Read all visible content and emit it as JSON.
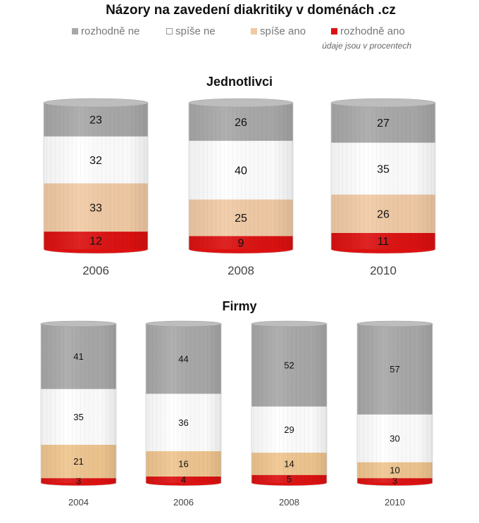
{
  "title": "Názory na zavedení diakritiky v doménách .cz",
  "note": "údaje jsou v procentech",
  "legend": [
    {
      "label": "rozhodně ne",
      "color": "#a8a8a8"
    },
    {
      "label": "spíše ne",
      "color": "#ffffff"
    },
    {
      "label": "spíše ano",
      "color": "#f2c9a0"
    },
    {
      "label": "rozhodně ano",
      "color": "#dd1111"
    }
  ],
  "chart_data": [
    {
      "type": "bar",
      "stacked": true,
      "title": "Jednotlivci",
      "categories": [
        "2006",
        "2008",
        "2010"
      ],
      "series": [
        {
          "name": "rozhodně ano",
          "values": [
            12,
            9,
            11
          ],
          "color": "#dd1111"
        },
        {
          "name": "spíše ano",
          "values": [
            33,
            25,
            26
          ],
          "color": "#f2cba6"
        },
        {
          "name": "spíše ne",
          "values": [
            32,
            40,
            35
          ],
          "color": "#ffffff"
        },
        {
          "name": "rozhodně ne",
          "values": [
            23,
            26,
            27
          ],
          "color": "#a9a9a9"
        }
      ]
    },
    {
      "type": "bar",
      "stacked": true,
      "title": "Firmy",
      "categories": [
        "2004",
        "2006",
        "2008",
        "2010"
      ],
      "series": [
        {
          "name": "rozhodně ano",
          "values": [
            3,
            4,
            5,
            3
          ],
          "color": "#dd1111"
        },
        {
          "name": "spíše ano",
          "values": [
            21,
            16,
            14,
            10
          ],
          "color": "#f0c690"
        },
        {
          "name": "spíše ne",
          "values": [
            35,
            36,
            29,
            30
          ],
          "color": "#ffffff"
        },
        {
          "name": "rozhodně ne",
          "values": [
            41,
            44,
            52,
            57
          ],
          "color": "#a9a9a9"
        }
      ]
    }
  ]
}
